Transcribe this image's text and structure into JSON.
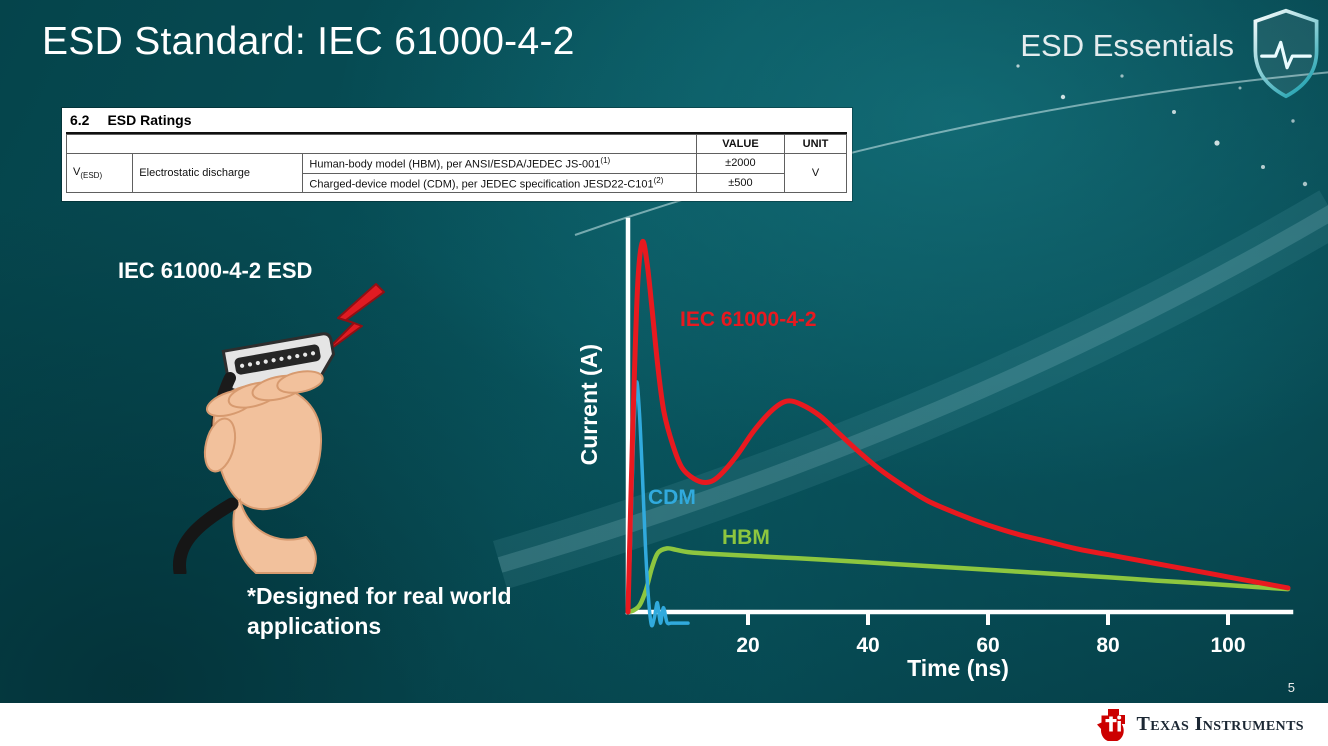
{
  "slide": {
    "title": "ESD Standard: IEC 61000-4-2",
    "series_brand": "ESD Essentials",
    "page_number": "5",
    "footer_logo_text": "Texas Instruments"
  },
  "ratings_table": {
    "section_number": "6.2",
    "section_title": "ESD Ratings",
    "value_header": "VALUE",
    "unit_header": "UNIT",
    "symbol_base": "V",
    "symbol_sub": "(ESD)",
    "parameter": "Electrostatic discharge",
    "unit": "V",
    "rows": [
      {
        "description": "Human-body model (HBM), per ANSI/ESDA/JEDEC JS-001",
        "footnote": "(1)",
        "value": "±2000"
      },
      {
        "description": "Charged-device model (CDM), per JEDEC specification JESD22-C101",
        "footnote": "(2)",
        "value": "±500"
      }
    ]
  },
  "left_panel": {
    "illustration_label": "IEC 61000-4-2 ESD",
    "note": "*Designed for real world\napplications"
  },
  "chart_data": {
    "type": "line",
    "title": "",
    "xlabel": "Time (ns)",
    "ylabel": "Current (A)",
    "xlim": [
      0,
      110
    ],
    "ylim": [
      -0.12,
      1.08
    ],
    "x_ticks": [
      20,
      40,
      60,
      80,
      100
    ],
    "y_ticks": [],
    "grid": false,
    "legend_position": "inline-labels",
    "series": [
      {
        "name": "IEC 61000-4-2",
        "color": "#e8191f",
        "x": [
          0,
          0.8,
          1.6,
          2.4,
          3.2,
          4,
          5,
          6,
          7.5,
          9,
          11,
          13,
          15,
          18,
          21,
          24,
          26.5,
          29,
          32,
          35,
          38,
          42,
          46,
          50,
          55,
          60,
          65,
          70,
          75,
          80,
          85,
          90,
          95,
          100,
          105,
          110
        ],
        "y": [
          0,
          0.5,
          0.88,
          1.0,
          0.94,
          0.82,
          0.66,
          0.54,
          0.45,
          0.39,
          0.36,
          0.35,
          0.365,
          0.42,
          0.49,
          0.545,
          0.57,
          0.56,
          0.53,
          0.485,
          0.44,
          0.385,
          0.34,
          0.3,
          0.265,
          0.235,
          0.21,
          0.19,
          0.17,
          0.155,
          0.14,
          0.125,
          0.11,
          0.095,
          0.08,
          0.065
        ]
      },
      {
        "name": "CDM",
        "color": "#31aadd",
        "x": [
          0,
          0.4,
          0.9,
          1.4,
          1.9,
          2.4,
          2.9,
          3.4,
          3.9,
          4.4,
          4.9,
          5.4,
          5.9,
          6.5,
          7.2,
          8,
          9,
          10
        ],
        "y": [
          0,
          0.18,
          0.46,
          0.62,
          0.54,
          0.37,
          0.18,
          0.04,
          -0.035,
          -0.015,
          0.025,
          -0.03,
          0.012,
          -0.028,
          -0.03,
          -0.03,
          -0.03,
          -0.03
        ]
      },
      {
        "name": "HBM",
        "color": "#8dc63f",
        "x": [
          0,
          1,
          2,
          3,
          4,
          5,
          6.5,
          8,
          10,
          14,
          20,
          26,
          32,
          40,
          48,
          56,
          64,
          72,
          80,
          88,
          96,
          104,
          110
        ],
        "y": [
          0,
          0.005,
          0.02,
          0.06,
          0.12,
          0.16,
          0.172,
          0.168,
          0.162,
          0.157,
          0.152,
          0.147,
          0.142,
          0.134,
          0.126,
          0.118,
          0.11,
          0.102,
          0.094,
          0.085,
          0.077,
          0.068,
          0.062
        ]
      }
    ]
  }
}
